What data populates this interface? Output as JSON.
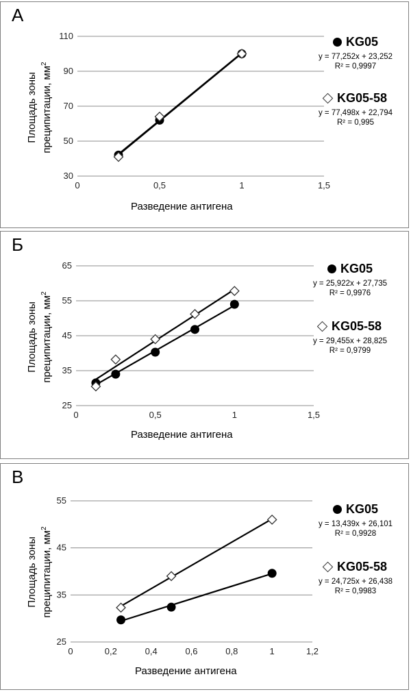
{
  "chart_data": [
    {
      "panel": "А",
      "type": "scatter",
      "xlabel": "Разведение антигена",
      "ylabel_line1": "Площадь зоны",
      "ylabel_line2": "преципитации, мм",
      "ylabel_sup": "2",
      "xlim": [
        0,
        1.5
      ],
      "ylim": [
        30,
        110
      ],
      "xticks": [
        0,
        0.5,
        1,
        1.5
      ],
      "xtick_labels": [
        "0",
        "0,5",
        "1",
        "1,5"
      ],
      "yticks": [
        30,
        50,
        70,
        90,
        110
      ],
      "ytick_labels": [
        "30",
        "50",
        "70",
        "90",
        "110"
      ],
      "grid": true,
      "series": [
        {
          "name": "KG05",
          "marker": "circle",
          "x": [
            0.25,
            0.5,
            1
          ],
          "y": [
            42,
            62,
            100
          ],
          "equation": "y = 77,252x + 23,252",
          "r2": "R² = 0,9997",
          "trend": [
            77.252,
            23.252
          ]
        },
        {
          "name": "KG05-58",
          "marker": "diamond",
          "x": [
            0.25,
            0.5,
            1
          ],
          "y": [
            41,
            64,
            100
          ],
          "equation": "y = 77,498x + 22,794",
          "r2": "R² = 0,995",
          "trend": [
            77.498,
            22.794
          ]
        }
      ]
    },
    {
      "panel": "Б",
      "type": "scatter",
      "xlabel": "Разведение антигена",
      "ylabel_line1": "Площадь зоны",
      "ylabel_line2": "преципитации, мм",
      "ylabel_sup": "2",
      "xlim": [
        0,
        1.5
      ],
      "ylim": [
        25,
        65
      ],
      "xticks": [
        0,
        0.5,
        1,
        1.5
      ],
      "xtick_labels": [
        "0",
        "0,5",
        "1",
        "1,5"
      ],
      "yticks": [
        25,
        35,
        45,
        55,
        65
      ],
      "ytick_labels": [
        "25",
        "35",
        "45",
        "55",
        "65"
      ],
      "grid": true,
      "series": [
        {
          "name": "KG05",
          "marker": "circle",
          "x": [
            0.125,
            0.25,
            0.5,
            0.75,
            1
          ],
          "y": [
            31.5,
            34,
            40.3,
            46.8,
            54
          ],
          "equation": "y = 25,922x + 27,735",
          "r2": "R² = 0,9976",
          "trend": [
            25.922,
            27.735
          ]
        },
        {
          "name": "KG05-58",
          "marker": "diamond",
          "x": [
            0.125,
            0.25,
            0.5,
            0.75,
            1
          ],
          "y": [
            30.5,
            38.2,
            44,
            51.2,
            57.8
          ],
          "equation": "y = 29,455x + 28,825",
          "r2": "R² = 0,9799",
          "trend": [
            29.455,
            28.825
          ]
        }
      ]
    },
    {
      "panel": "В",
      "type": "scatter",
      "xlabel": "Разведение антигена",
      "ylabel_line1": "Площадь зоны",
      "ylabel_line2": "преципитации, мм",
      "ylabel_sup": "2",
      "xlim": [
        0,
        1.2
      ],
      "ylim": [
        25,
        55
      ],
      "xticks": [
        0,
        0.2,
        0.4,
        0.6,
        0.8,
        1,
        1.2
      ],
      "xtick_labels": [
        "0",
        "0,2",
        "0,4",
        "0,6",
        "0,8",
        "1",
        "1,2"
      ],
      "yticks": [
        25,
        35,
        45,
        55
      ],
      "ytick_labels": [
        "25",
        "35",
        "45",
        "55"
      ],
      "grid": true,
      "series": [
        {
          "name": "KG05",
          "marker": "circle",
          "x": [
            0.25,
            0.5,
            1
          ],
          "y": [
            29.7,
            32.4,
            39.6
          ],
          "equation": "y = 13,439x + 26,101",
          "r2": "R² = 0,9928",
          "trend": [
            13.439,
            26.101
          ]
        },
        {
          "name": "KG05-58",
          "marker": "diamond",
          "x": [
            0.25,
            0.5,
            1
          ],
          "y": [
            32.3,
            39,
            51
          ],
          "equation": "y = 24,725x + 26,438",
          "r2": "R² = 0,9983",
          "trend": [
            24.725,
            26.438
          ]
        }
      ]
    }
  ]
}
